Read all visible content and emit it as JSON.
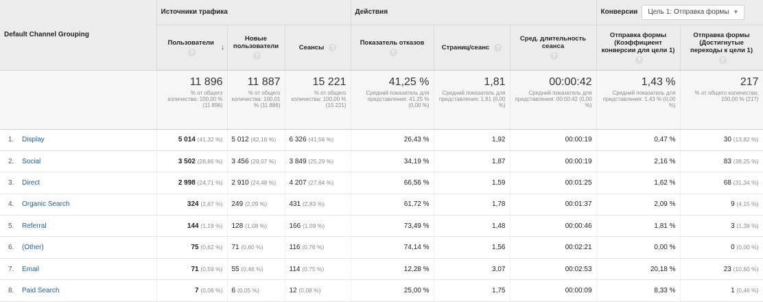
{
  "dimension_header": "Default Channel Grouping",
  "groups": {
    "acquisition": "Источники трафика",
    "behavior": "Действия",
    "conversions_label": "Конверсии",
    "goal_select": "Цель 1: Отправка формы"
  },
  "metrics": {
    "users": "Пользователи",
    "new_users": "Новые пользователи",
    "sessions": "Сеансы",
    "bounce_rate": "Показатель отказов",
    "pages_per_session": "Страниц/сеанс",
    "avg_session_duration": "Сред. длительность сеанса",
    "conv_rate": "Отправка формы (Коэффициент конверсии для цели 1)",
    "completions": "Отправка формы (Достигнутые переходы к цели 1)"
  },
  "icons": {
    "help": "question-icon",
    "sort": "sort-down-arrow-icon",
    "dropdown": "chevron-down-icon"
  },
  "totals": [
    {
      "value": "11 896",
      "sub": "% от общего количества: 100,00 % (11 896)"
    },
    {
      "value": "11 887",
      "sub": "% от общего количества: 100,01 % (11 886)"
    },
    {
      "value": "15 221",
      "sub": "% от общего количества: 100,00 % (15 221)"
    },
    {
      "value": "41,25 %",
      "sub": "Средний показатель для представления: 41,25 % (0,00 %)"
    },
    {
      "value": "1,81",
      "sub": "Средний показатель для представления: 1,81 (0,00 %)"
    },
    {
      "value": "00:00:42",
      "sub": "Средний показатель для представления: 00:00:42 (0,00 %)"
    },
    {
      "value": "1,43 %",
      "sub": "Средний показатель для представления: 1,43 % (0,00 %)"
    },
    {
      "value": "217",
      "sub": "% от общего количества: 100,00 % (217)"
    }
  ],
  "rows": [
    {
      "idx": "1.",
      "channel": "Display",
      "users": "5 014",
      "users_pct": "(41,32 %)",
      "new_users": "5 012",
      "new_users_pct": "(42,16 %)",
      "sessions": "6 326",
      "sessions_pct": "(41,56 %)",
      "bounce": "26,43 %",
      "pps": "1,92",
      "duration": "00:00:19",
      "conv_rate": "0,47 %",
      "completions": "30",
      "completions_pct": "(13,82 %)"
    },
    {
      "idx": "2.",
      "channel": "Social",
      "users": "3 502",
      "users_pct": "(28,86 %)",
      "new_users": "3 456",
      "new_users_pct": "(29,07 %)",
      "sessions": "3 849",
      "sessions_pct": "(25,29 %)",
      "bounce": "34,19 %",
      "pps": "1,87",
      "duration": "00:00:19",
      "conv_rate": "2,16 %",
      "completions": "83",
      "completions_pct": "(38,25 %)"
    },
    {
      "idx": "3.",
      "channel": "Direct",
      "users": "2 998",
      "users_pct": "(24,71 %)",
      "new_users": "2 910",
      "new_users_pct": "(24,48 %)",
      "sessions": "4 207",
      "sessions_pct": "(27,64 %)",
      "bounce": "66,56 %",
      "pps": "1,59",
      "duration": "00:01:25",
      "conv_rate": "1,62 %",
      "completions": "68",
      "completions_pct": "(31,34 %)"
    },
    {
      "idx": "4.",
      "channel": "Organic Search",
      "users": "324",
      "users_pct": "(2,67 %)",
      "new_users": "249",
      "new_users_pct": "(2,09 %)",
      "sessions": "431",
      "sessions_pct": "(2,83 %)",
      "bounce": "61,72 %",
      "pps": "1,78",
      "duration": "00:01:37",
      "conv_rate": "2,09 %",
      "completions": "9",
      "completions_pct": "(4,15 %)"
    },
    {
      "idx": "5.",
      "channel": "Referral",
      "users": "144",
      "users_pct": "(1,19 %)",
      "new_users": "128",
      "new_users_pct": "(1,08 %)",
      "sessions": "166",
      "sessions_pct": "(1,09 %)",
      "bounce": "73,49 %",
      "pps": "1,48",
      "duration": "00:00:46",
      "conv_rate": "1,81 %",
      "completions": "3",
      "completions_pct": "(1,38 %)"
    },
    {
      "idx": "6.",
      "channel": "(Other)",
      "users": "75",
      "users_pct": "(0,62 %)",
      "new_users": "71",
      "new_users_pct": "(0,60 %)",
      "sessions": "116",
      "sessions_pct": "(0,76 %)",
      "bounce": "74,14 %",
      "pps": "1,56",
      "duration": "00:02:21",
      "conv_rate": "0,00 %",
      "completions": "0",
      "completions_pct": "(0,00 %)"
    },
    {
      "idx": "7.",
      "channel": "Email",
      "users": "71",
      "users_pct": "(0,59 %)",
      "new_users": "55",
      "new_users_pct": "(0,46 %)",
      "sessions": "114",
      "sessions_pct": "(0,75 %)",
      "bounce": "12,28 %",
      "pps": "3,07",
      "duration": "00:02:53",
      "conv_rate": "20,18 %",
      "completions": "23",
      "completions_pct": "(10,60 %)"
    },
    {
      "idx": "8.",
      "channel": "Paid Search",
      "users": "7",
      "users_pct": "(0,06 %)",
      "new_users": "6",
      "new_users_pct": "(0,05 %)",
      "sessions": "12",
      "sessions_pct": "(0,08 %)",
      "bounce": "25,00 %",
      "pps": "1,75",
      "duration": "00:00:09",
      "conv_rate": "8,33 %",
      "completions": "1",
      "completions_pct": "(0,46 %)"
    }
  ]
}
